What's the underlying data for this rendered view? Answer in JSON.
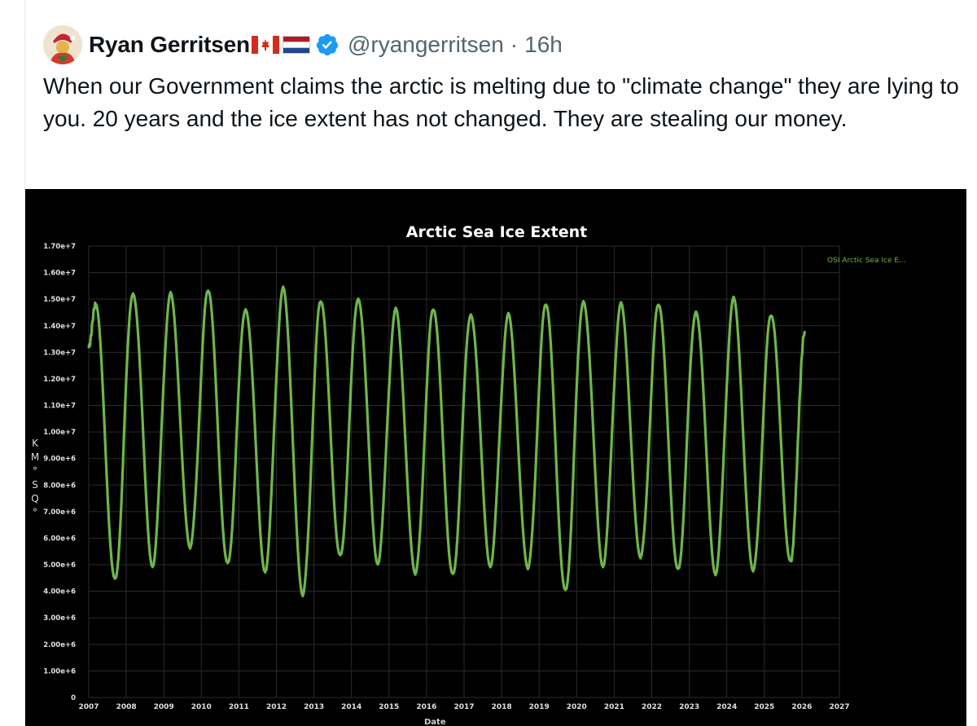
{
  "tweet": {
    "author_name": "Ryan Gerritsen",
    "handle": "@ryangerritsen",
    "separator": "·",
    "time": "16h",
    "text": "When our Government claims the arctic is melting due to \"climate change\" they are lying to you. 20 years and the ice extent has not changed. They are stealing our money.",
    "flags": [
      "canada-flag-icon",
      "netherlands-flag-icon"
    ],
    "verified_badge": "verified-badge-icon"
  },
  "colors": {
    "accent_blue": "#1d9bf0",
    "series_green": "#6fb64b",
    "chart_background": "#000000"
  },
  "chart_data": {
    "type": "line",
    "title": "Arctic Sea Ice Extent",
    "ylabel_chars": [
      "K",
      "M",
      "°",
      "S",
      "Q",
      "°"
    ],
    "xlabel": "Date",
    "legend": {
      "label": "OSI  Arctic  Sea  Ice  E...",
      "placement": "right"
    },
    "ylim": [
      0,
      17000000
    ],
    "xlim": [
      2007,
      2027
    ],
    "y_ticks": [
      "0",
      "1.00e+6",
      "2.00e+6",
      "3.00e+6",
      "4.00e+6",
      "5.00e+6",
      "6.00e+6",
      "7.00e+6",
      "8.00e+6",
      "9.00e+6",
      "1.00e+7",
      "1.10e+7",
      "1.20e+7",
      "1.30e+7",
      "1.40e+7",
      "1.50e+7",
      "1.60e+7",
      "1.70e+7"
    ],
    "x_ticks": [
      "2007",
      "2008",
      "2009",
      "2010",
      "2011",
      "2012",
      "2013",
      "2014",
      "2015",
      "2016",
      "2017",
      "2018",
      "2019",
      "2020",
      "2021",
      "2022",
      "2023",
      "2024",
      "2025",
      "2026",
      "2027"
    ],
    "grid": true,
    "series": [
      {
        "name": "OSI  Arctic  Sea  Ice  E...",
        "color": "#6fb64b",
        "annual_max": [
          14800000,
          15300000,
          15200000,
          15300000,
          14700000,
          15400000,
          14900000,
          15100000,
          14600000,
          14600000,
          14500000,
          14400000,
          14800000,
          15000000,
          14800000,
          14800000,
          14600000,
          15000000,
          14400000
        ],
        "annual_min": [
          4400000,
          5000000,
          5600000,
          5000000,
          4800000,
          3800000,
          5300000,
          5100000,
          4600000,
          4600000,
          5000000,
          4800000,
          4000000,
          5000000,
          5200000,
          4800000,
          4700000,
          4700000,
          5100000
        ],
        "end_value": 13800000,
        "start_value": 13200000
      }
    ]
  }
}
